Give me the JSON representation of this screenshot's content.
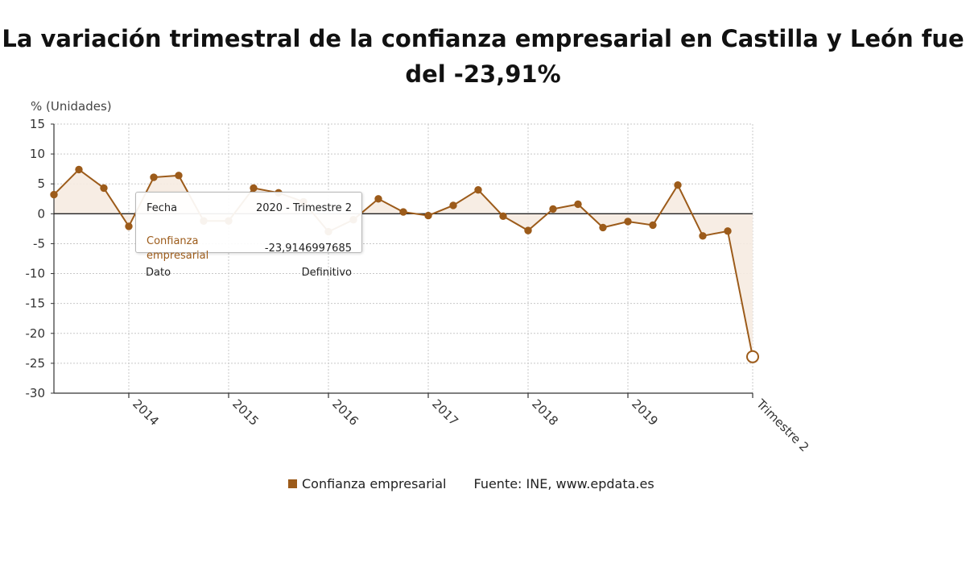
{
  "title": "La variación trimestral de la confianza empresarial en Castilla y León fue del -23,91%",
  "legend_label": "Confianza empresarial",
  "source": "Fuente: INE, www.epdata.es",
  "tooltip": {
    "fecha_label": "Fecha",
    "fecha_value": "2020 - Trimestre 2",
    "series_label": "Confianza empresarial",
    "series_value": "-23,9146997685",
    "dato_label": "Dato",
    "dato_value": "Definitivo"
  },
  "colors": {
    "series": "#9c5b1a",
    "fill": "#f6ebe1",
    "grid": "#c8c8c8",
    "axis": "#333333"
  },
  "chart_data": {
    "type": "line",
    "title": "La variación trimestral de la confianza empresarial en Castilla y León fue del -23,91%",
    "ylabel": "% (Unidades)",
    "ylim": [
      -30,
      15
    ],
    "y_ticks": [
      15,
      10,
      5,
      0,
      -5,
      -10,
      -15,
      -20,
      -25,
      -30
    ],
    "x_tick_labels": [
      "2014",
      "2015",
      "2016",
      "2017",
      "2018",
      "2019",
      "Trimestre 2"
    ],
    "x_tick_positions": [
      "2014 - Trimestre 1",
      "2015 - Trimestre 1",
      "2016 - Trimestre 1",
      "2017 - Trimestre 1",
      "2018 - Trimestre 1",
      "2019 - Trimestre 1",
      "2020 - Trimestre 2"
    ],
    "grid": true,
    "legend_position": "bottom",
    "series": [
      {
        "name": "Confianza empresarial",
        "x": [
          "2013 - Trimestre 2",
          "2013 - Trimestre 3",
          "2013 - Trimestre 4",
          "2014 - Trimestre 1",
          "2014 - Trimestre 2",
          "2014 - Trimestre 3",
          "2014 - Trimestre 4",
          "2015 - Trimestre 1",
          "2015 - Trimestre 2",
          "2015 - Trimestre 3",
          "2015 - Trimestre 4",
          "2016 - Trimestre 1",
          "2016 - Trimestre 2",
          "2016 - Trimestre 3",
          "2016 - Trimestre 4",
          "2017 - Trimestre 1",
          "2017 - Trimestre 2",
          "2017 - Trimestre 3",
          "2017 - Trimestre 4",
          "2018 - Trimestre 1",
          "2018 - Trimestre 2",
          "2018 - Trimestre 3",
          "2018 - Trimestre 4",
          "2019 - Trimestre 1",
          "2019 - Trimestre 2",
          "2019 - Trimestre 3",
          "2019 - Trimestre 4",
          "2020 - Trimestre 1",
          "2020 - Trimestre 2"
        ],
        "values": [
          3.2,
          7.4,
          4.3,
          -2.1,
          6.1,
          6.4,
          -1.2,
          -1.2,
          4.3,
          3.5,
          2.0,
          -3.0,
          -1.0,
          2.5,
          0.3,
          -0.3,
          1.4,
          4.0,
          -0.4,
          -2.8,
          0.8,
          1.6,
          -2.3,
          -1.3,
          -1.9,
          4.8,
          -3.7,
          -2.9,
          -23.91
        ]
      }
    ]
  }
}
